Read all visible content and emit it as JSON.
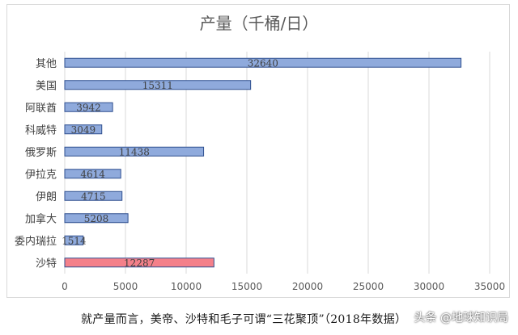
{
  "chart_data": {
    "type": "bar",
    "orientation": "horizontal",
    "title": "产量（千桶/日）",
    "categories": [
      "其他",
      "美国",
      "阿联酋",
      "科威特",
      "俄罗斯",
      "伊拉克",
      "伊朗",
      "加拿大",
      "委内瑞拉",
      "沙特"
    ],
    "values": [
      32640,
      15311,
      3942,
      3049,
      11438,
      4614,
      4715,
      5208,
      1514,
      12287
    ],
    "data_labels": [
      "32640",
      "15311",
      "3942",
      "3049",
      "11438",
      "4614",
      "4715",
      "5208",
      "1514",
      "12287"
    ],
    "xlim": [
      0,
      35000
    ],
    "x_ticks": [
      0,
      5000,
      10000,
      15000,
      20000,
      25000,
      30000,
      35000
    ],
    "x_tick_labels": [
      "0",
      "5000",
      "10000",
      "15000",
      "20000",
      "25000",
      "30000",
      "35000"
    ],
    "grid": true,
    "bar_color": "#8faadc",
    "highlight_color": "#f4808a",
    "highlight_category": "沙特"
  },
  "caption": "就产量而言，美帝、沙特和毛子可谓“三花聚顶”（2018年数据）",
  "watermark": "头条 @地球知识局"
}
